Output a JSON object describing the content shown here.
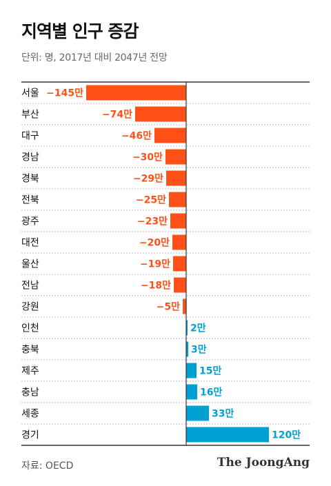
{
  "header": {
    "title": "지역별 인구 증감",
    "subtitle": "단위: 명, 2017년 대비 2047년 전망"
  },
  "footer": {
    "source": "자료: OECD",
    "brand": "The JoongAng"
  },
  "colors": {
    "negative": "#ff5018",
    "positive": "#00a0d2",
    "axis": "#333333",
    "gridline": "#b8b8b8"
  },
  "chart_data": {
    "type": "bar",
    "orientation": "horizontal",
    "unit_suffix": "만",
    "categories": [
      "서울",
      "부산",
      "대구",
      "경남",
      "경북",
      "전북",
      "광주",
      "대전",
      "울산",
      "전남",
      "강원",
      "인천",
      "충북",
      "제주",
      "충남",
      "세종",
      "경기"
    ],
    "values": [
      -145,
      -74,
      -46,
      -30,
      -29,
      -25,
      -23,
      -20,
      -19,
      -18,
      -5,
      2,
      3,
      15,
      16,
      33,
      120
    ],
    "value_labels": [
      "−145만",
      "−74만",
      "−46만",
      "−30만",
      "−29만",
      "−25만",
      "−23만",
      "−20만",
      "−19만",
      "−18만",
      "−5만",
      "2만",
      "3만",
      "15만",
      "16만",
      "33만",
      "120만"
    ],
    "xlim": [
      -145,
      145
    ],
    "grid": true,
    "legend": "none"
  }
}
